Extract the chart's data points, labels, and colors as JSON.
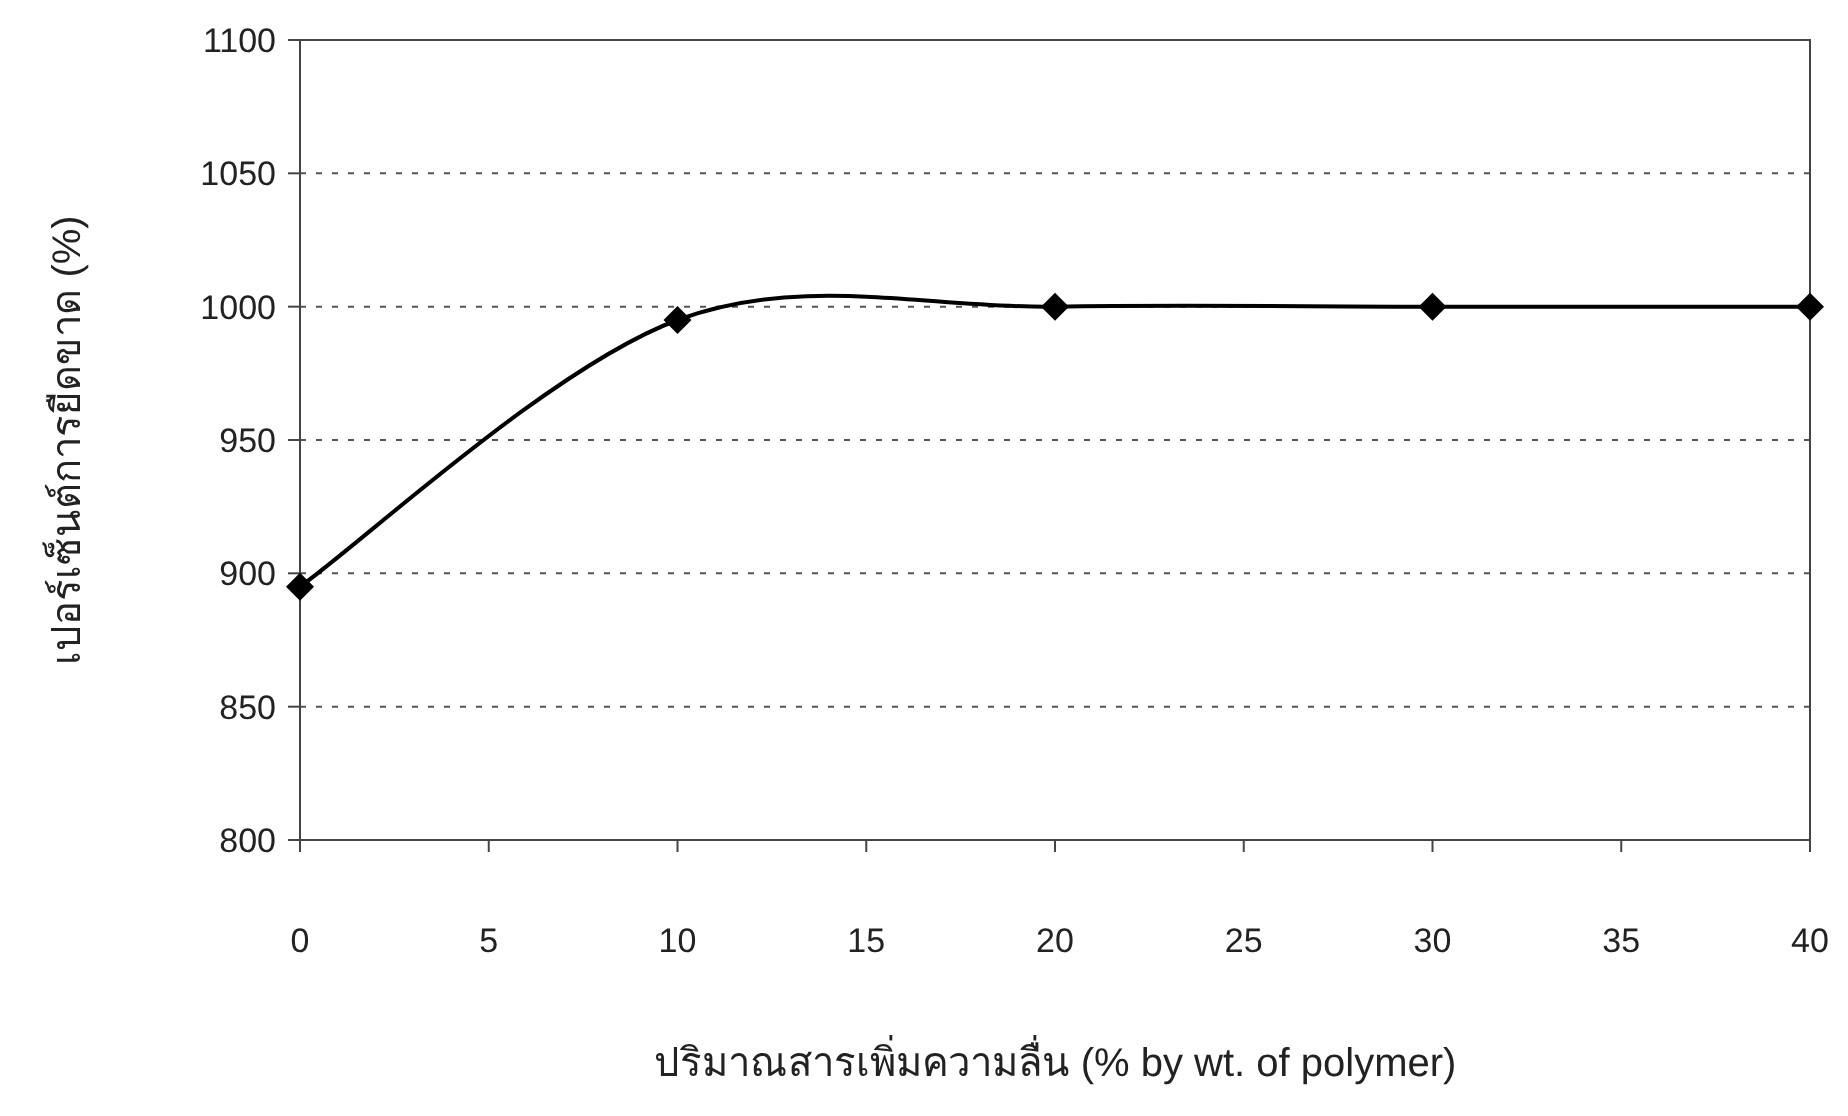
{
  "chart_data": {
    "type": "line",
    "xlabel": "ปริมาณสารเพิ่มความลื่น (% by wt. of polymer)",
    "ylabel": "เปอร์เซ็นต์การยืดขาด (%)",
    "x": [
      0,
      10,
      20,
      30,
      40
    ],
    "series": [
      {
        "color": "#000000",
        "values": [
          895,
          995,
          1000,
          1000,
          1000
        ]
      }
    ],
    "xlim": [
      0,
      40
    ],
    "xticks": [
      0,
      5,
      10,
      15,
      20,
      25,
      30,
      35,
      40
    ],
    "ylim": [
      800,
      1100
    ],
    "yticks": [
      800,
      850,
      900,
      950,
      1000,
      1050,
      1100
    ],
    "grid": "y",
    "marker": "diamond",
    "line_style": "solid"
  }
}
